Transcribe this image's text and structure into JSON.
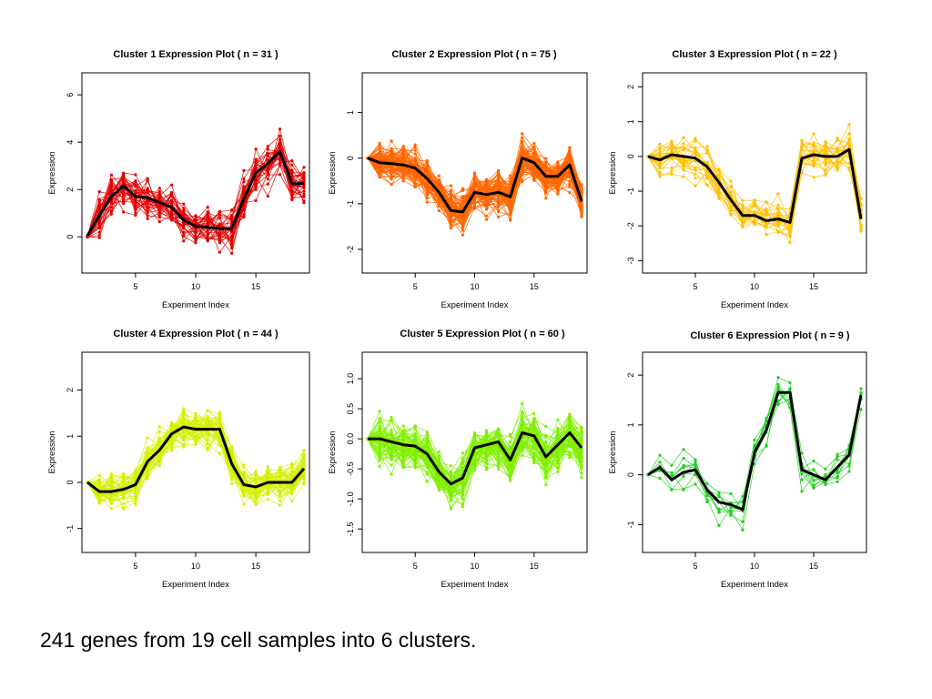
{
  "caption": "241 genes from 19 cell samples into 6 clusters.",
  "chart_data": [
    {
      "type": "line",
      "title": "Cluster 1 Expression Plot ( n = 31 )",
      "xlabel": "Experiment Index",
      "ylabel": "Expression",
      "color": "#e00000",
      "xlim": [
        1,
        19
      ],
      "ylim": [
        -1.3,
        6.7
      ],
      "xticks": [
        5,
        10,
        15
      ],
      "yticks": [
        0,
        2,
        4,
        6
      ],
      "n_genes": 31,
      "spread": 0.75,
      "mean": [
        0.05,
        0.9,
        1.7,
        2.15,
        1.7,
        1.65,
        1.45,
        1.25,
        0.7,
        0.45,
        0.4,
        0.35,
        0.35,
        1.6,
        2.7,
        3.1,
        3.6,
        2.25,
        2.25
      ]
    },
    {
      "type": "line",
      "title": "Cluster 2 Expression Plot ( n = 75 )",
      "xlabel": "Experiment Index",
      "ylabel": "Expression",
      "color": "#ff6600",
      "xlim": [
        1,
        19
      ],
      "ylim": [
        -2.4,
        1.75
      ],
      "xticks": [
        5,
        10,
        15
      ],
      "yticks": [
        -2,
        -1,
        0,
        1
      ],
      "n_genes": 75,
      "spread": 0.33,
      "mean": [
        0,
        -0.1,
        -0.12,
        -0.15,
        -0.22,
        -0.45,
        -0.75,
        -1.15,
        -1.18,
        -0.75,
        -0.8,
        -0.75,
        -0.85,
        0.0,
        -0.1,
        -0.4,
        -0.4,
        -0.15,
        -0.95
      ]
    },
    {
      "type": "line",
      "title": "Cluster 3 Expression Plot ( n = 22 )",
      "xlabel": "Experiment Index",
      "ylabel": "Expression",
      "color": "#ffc000",
      "xlim": [
        1,
        19
      ],
      "ylim": [
        -3.2,
        2.25
      ],
      "xticks": [
        5,
        10,
        15
      ],
      "yticks": [
        -3,
        -2,
        -1,
        0,
        1,
        2
      ],
      "n_genes": 22,
      "spread": 0.45,
      "mean": [
        0,
        -0.1,
        0.05,
        0,
        -0.05,
        -0.3,
        -0.75,
        -1.25,
        -1.7,
        -1.7,
        -1.85,
        -1.8,
        -1.9,
        -0.05,
        0.05,
        0.0,
        0.0,
        0.2,
        -1.8
      ]
    },
    {
      "type": "line",
      "title": "Cluster 4 Expression Plot ( n = 44 )",
      "xlabel": "Experiment Index",
      "ylabel": "Expression",
      "color": "#d4f000",
      "xlim": [
        1,
        19
      ],
      "ylim": [
        -1.4,
        2.7
      ],
      "xticks": [
        5,
        10,
        15
      ],
      "yticks": [
        -1,
        0,
        1,
        2
      ],
      "n_genes": 44,
      "spread": 0.32,
      "mean": [
        0,
        -0.2,
        -0.2,
        -0.15,
        -0.05,
        0.45,
        0.7,
        1.05,
        1.2,
        1.15,
        1.15,
        1.15,
        0.4,
        -0.05,
        -0.1,
        0,
        0,
        0,
        0.3
      ]
    },
    {
      "type": "line",
      "title": "Cluster 5 Expression Plot ( n = 60 )",
      "xlabel": "Experiment Index",
      "ylabel": "Expression",
      "color": "#80f000",
      "xlim": [
        1,
        19
      ],
      "ylim": [
        -1.8,
        1.35
      ],
      "xticks": [
        5,
        10,
        15
      ],
      "yticks": [
        -1.5,
        -1.0,
        -0.5,
        0.0,
        0.5,
        1.0
      ],
      "n_genes": 60,
      "spread": 0.32,
      "mean": [
        0,
        0,
        -0.05,
        -0.1,
        -0.12,
        -0.25,
        -0.55,
        -0.75,
        -0.65,
        -0.15,
        -0.1,
        -0.05,
        -0.35,
        0.1,
        0.05,
        -0.3,
        -0.1,
        0.1,
        -0.15
      ]
    },
    {
      "type": "line",
      "title": "Cluster 6 Expression Plot ( n = 9 )",
      "xlabel": "Experiment Index",
      "ylabel": "Expression",
      "color": "#20d020",
      "xlim": [
        1,
        19
      ],
      "ylim": [
        -1.45,
        2.35
      ],
      "xticks": [
        5,
        10,
        15
      ],
      "yticks": [
        -1,
        0,
        1,
        2
      ],
      "n_genes": 9,
      "spread": 0.3,
      "mean": [
        0,
        0.15,
        -0.1,
        0.05,
        0.1,
        -0.3,
        -0.55,
        -0.6,
        -0.7,
        0.45,
        0.9,
        1.65,
        1.65,
        0.1,
        0.0,
        -0.1,
        0.15,
        0.4,
        1.6
      ]
    }
  ]
}
